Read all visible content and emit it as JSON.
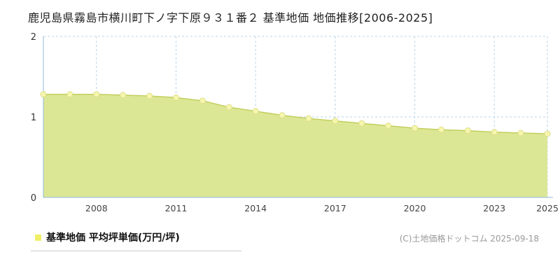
{
  "title": "鹿児島県霧島市横川町下ノ字下原９３１番２ 基準地価 地価推移[2006-2025]",
  "legend": {
    "label": "基準地価 平均坪単価(万円/坪)"
  },
  "footer": {
    "copyright": "(C)土地価格ドットコム 2025-09-18"
  },
  "colors": {
    "area_fill": "#dce795",
    "line_stroke": "#c3cf5e",
    "point_fill": "#f6f6ae",
    "point_stroke": "#dede8a",
    "grid": "#b8d4ea",
    "axis": "#8fb8dc",
    "tick_label": "#444444",
    "legend_marker": "#f0ef67"
  },
  "chart_data": {
    "type": "area",
    "title": "鹿児島県霧島市横川町下ノ字下原９３１番２ 基準地価 地価推移[2006-2025]",
    "xlabel": "",
    "ylabel": "平均坪単価(万円/坪)",
    "x": [
      2006,
      2007,
      2008,
      2009,
      2010,
      2011,
      2012,
      2013,
      2014,
      2015,
      2016,
      2017,
      2018,
      2019,
      2020,
      2021,
      2022,
      2023,
      2024,
      2025
    ],
    "values": [
      1.28,
      1.28,
      1.28,
      1.27,
      1.26,
      1.24,
      1.2,
      1.12,
      1.07,
      1.02,
      0.98,
      0.95,
      0.92,
      0.89,
      0.86,
      0.84,
      0.83,
      0.81,
      0.8,
      0.79
    ],
    "ylim": [
      0,
      2
    ],
    "yticks": [
      0,
      1,
      2
    ],
    "xticks": [
      2008,
      2011,
      2014,
      2017,
      2020,
      2023,
      2025
    ],
    "grid": true,
    "legend_position": "bottom-left",
    "series_name": "基準地価 平均坪単価(万円/坪)"
  }
}
